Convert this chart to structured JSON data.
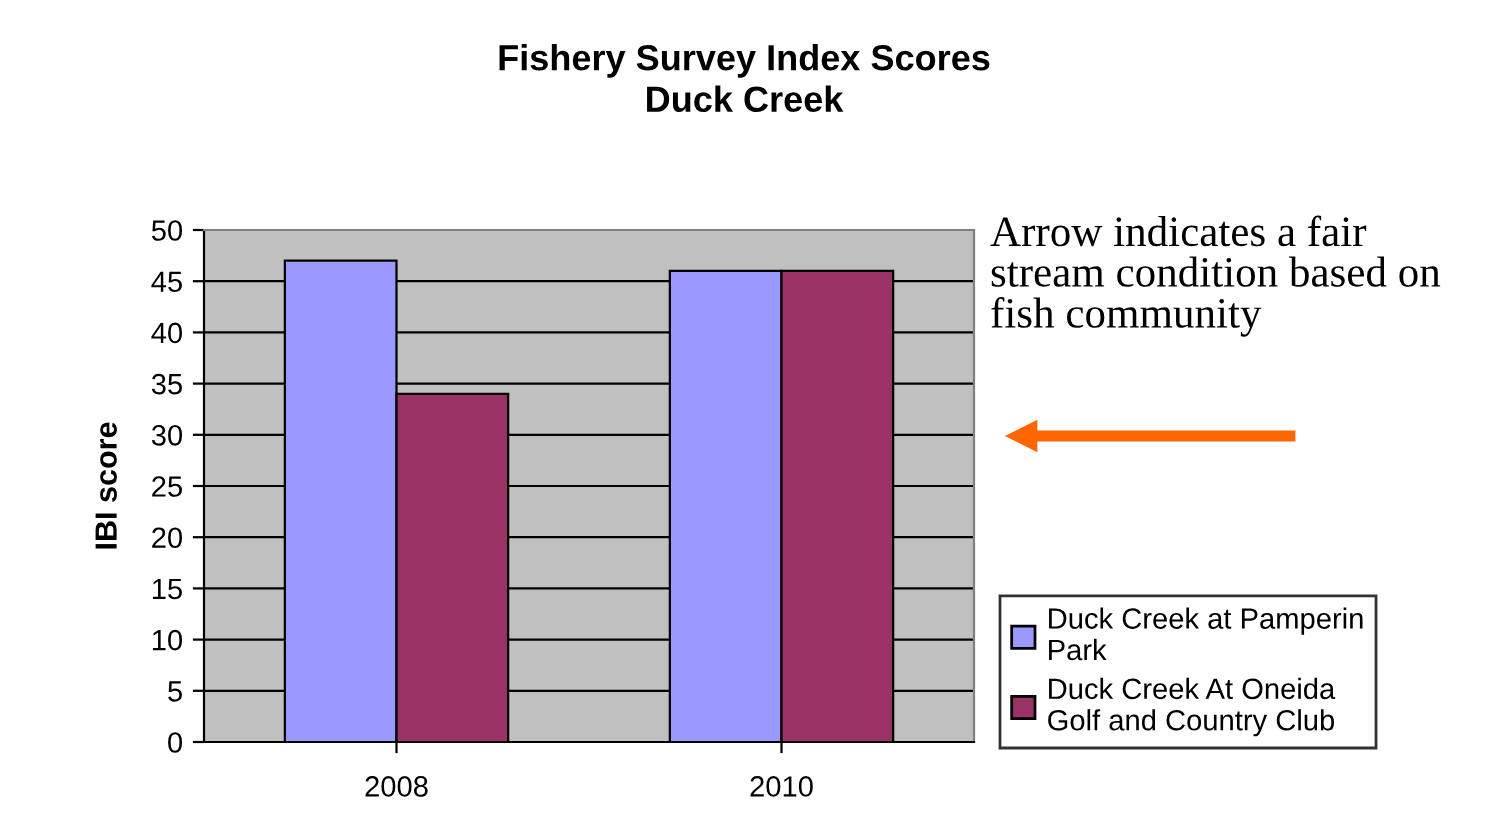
{
  "chart_data": {
    "type": "bar",
    "title": "Fishery Survey Index Scores\nDuck Creek",
    "ylabel": "IBI score",
    "categories": [
      "2008",
      "2010"
    ],
    "series": [
      {
        "name": "Duck Creek at Pamperin Park",
        "color": "#9999ff",
        "values": [
          47,
          46
        ]
      },
      {
        "name": "Duck Creek At Oneida Golf and Country Club",
        "color": "#993366",
        "values": [
          34,
          46
        ]
      }
    ],
    "ylim": [
      0,
      50
    ],
    "yticks": [
      0,
      5,
      10,
      15,
      20,
      25,
      30,
      35,
      40,
      45,
      50
    ],
    "grid": "y",
    "legend": "right",
    "annotations": [
      "Arrow indicates a fair stream condition based on fish community"
    ]
  }
}
